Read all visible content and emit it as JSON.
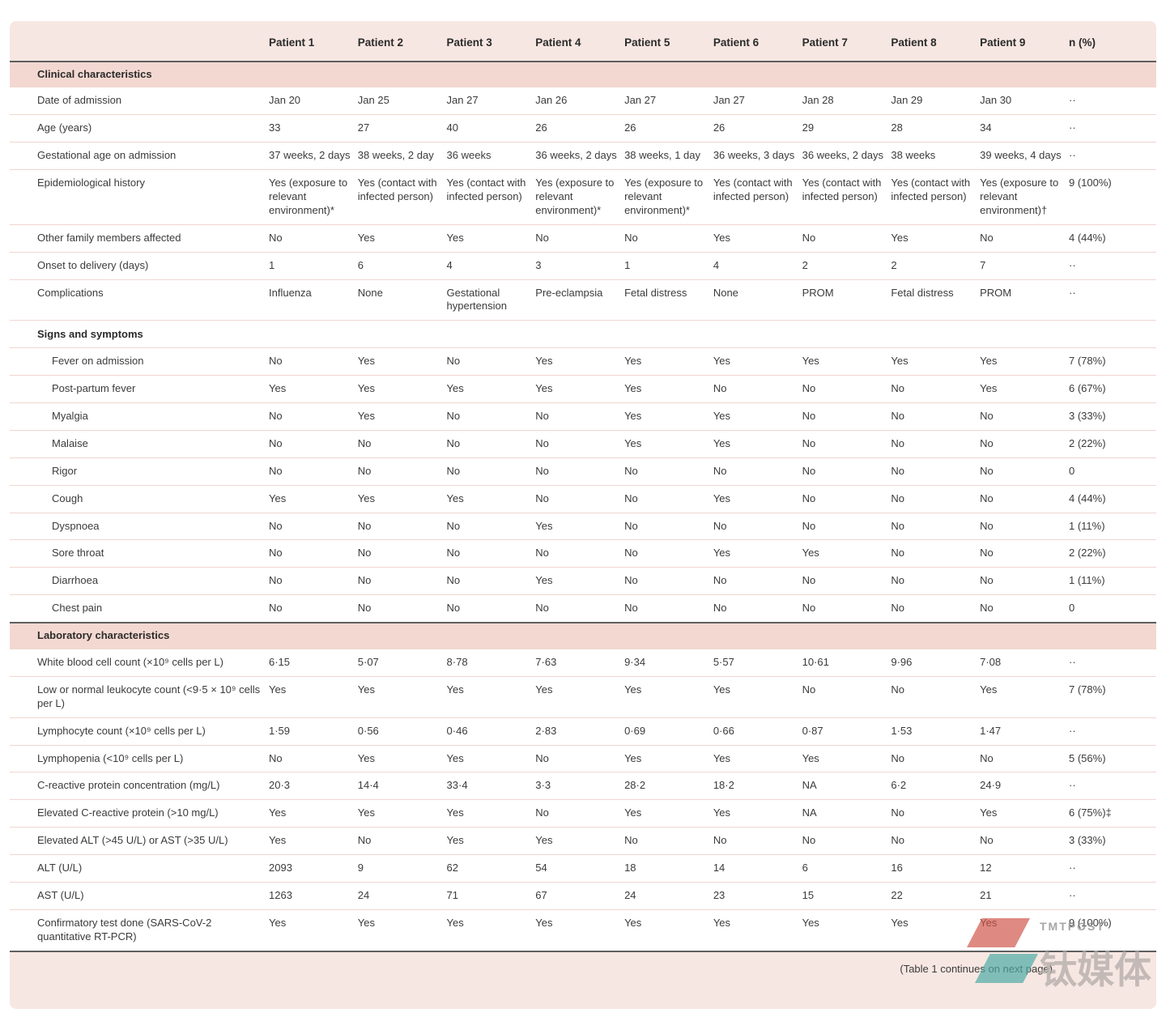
{
  "table": {
    "columns": [
      "",
      "Patient 1",
      "Patient 2",
      "Patient 3",
      "Patient 4",
      "Patient 5",
      "Patient 6",
      "Patient 7",
      "Patient 8",
      "Patient 9",
      "n (%)"
    ],
    "footer_note": "(Table 1 continues on next page)",
    "sections": [
      {
        "type": "band",
        "label": "Clinical characteristics",
        "rows": [
          {
            "label": "Date of admission",
            "cells": [
              "Jan 20",
              "Jan 25",
              "Jan 27",
              "Jan 26",
              "Jan 27",
              "Jan 27",
              "Jan 28",
              "Jan 29",
              "Jan 30"
            ],
            "n": "··"
          },
          {
            "label": "Age (years)",
            "cells": [
              "33",
              "27",
              "40",
              "26",
              "26",
              "26",
              "29",
              "28",
              "34"
            ],
            "n": "··"
          },
          {
            "label": "Gestational age on admission",
            "cells": [
              "37 weeks, 2 days",
              "38 weeks, 2 day",
              "36 weeks",
              "36 weeks, 2 days",
              "38 weeks, 1 day",
              "36 weeks, 3 days",
              "36 weeks, 2 days",
              "38 weeks",
              "39 weeks, 4 days"
            ],
            "n": "··"
          },
          {
            "label": "Epidemiological history",
            "cells": [
              "Yes (exposure to relevant environment)*",
              "Yes (contact with infected person)",
              "Yes (contact with infected person)",
              "Yes (exposure to relevant environment)*",
              "Yes (exposure to relevant environment)*",
              "Yes (contact with infected person)",
              "Yes (contact with infected person)",
              "Yes (contact with infected person)",
              "Yes (exposure to relevant environment)†"
            ],
            "n": "9 (100%)"
          },
          {
            "label": "Other family members affected",
            "cells": [
              "No",
              "Yes",
              "Yes",
              "No",
              "No",
              "Yes",
              "No",
              "Yes",
              "No"
            ],
            "n": "4 (44%)"
          },
          {
            "label": "Onset to delivery (days)",
            "cells": [
              "1",
              "6",
              "4",
              "3",
              "1",
              "4",
              "2",
              "2",
              "7"
            ],
            "n": "··"
          },
          {
            "label": "Complications",
            "cells": [
              "Influenza",
              "None",
              "Gestational hypertension",
              "Pre-eclampsia",
              "Fetal distress",
              "None",
              "PROM",
              "Fetal distress",
              "PROM"
            ],
            "n": "··"
          }
        ]
      },
      {
        "type": "subheader",
        "label": "Signs and symptoms",
        "rows": [
          {
            "label": "Fever on admission",
            "indent": true,
            "cells": [
              "No",
              "Yes",
              "No",
              "Yes",
              "Yes",
              "Yes",
              "Yes",
              "Yes",
              "Yes"
            ],
            "n": "7 (78%)"
          },
          {
            "label": "Post-partum fever",
            "indent": true,
            "cells": [
              "Yes",
              "Yes",
              "Yes",
              "Yes",
              "Yes",
              "No",
              "No",
              "No",
              "Yes"
            ],
            "n": "6 (67%)"
          },
          {
            "label": "Myalgia",
            "indent": true,
            "cells": [
              "No",
              "Yes",
              "No",
              "No",
              "Yes",
              "Yes",
              "No",
              "No",
              "No"
            ],
            "n": "3 (33%)"
          },
          {
            "label": "Malaise",
            "indent": true,
            "cells": [
              "No",
              "No",
              "No",
              "No",
              "Yes",
              "Yes",
              "No",
              "No",
              "No"
            ],
            "n": "2 (22%)"
          },
          {
            "label": "Rigor",
            "indent": true,
            "cells": [
              "No",
              "No",
              "No",
              "No",
              "No",
              "No",
              "No",
              "No",
              "No"
            ],
            "n": "0"
          },
          {
            "label": "Cough",
            "indent": true,
            "cells": [
              "Yes",
              "Yes",
              "Yes",
              "No",
              "No",
              "Yes",
              "No",
              "No",
              "No"
            ],
            "n": "4 (44%)"
          },
          {
            "label": "Dyspnoea",
            "indent": true,
            "cells": [
              "No",
              "No",
              "No",
              "Yes",
              "No",
              "No",
              "No",
              "No",
              "No"
            ],
            "n": "1 (11%)"
          },
          {
            "label": "Sore throat",
            "indent": true,
            "cells": [
              "No",
              "No",
              "No",
              "No",
              "No",
              "Yes",
              "Yes",
              "No",
              "No"
            ],
            "n": "2 (22%)"
          },
          {
            "label": "Diarrhoea",
            "indent": true,
            "cells": [
              "No",
              "No",
              "No",
              "Yes",
              "No",
              "No",
              "No",
              "No",
              "No"
            ],
            "n": "1 (11%)"
          },
          {
            "label": "Chest pain",
            "indent": true,
            "cells": [
              "No",
              "No",
              "No",
              "No",
              "No",
              "No",
              "No",
              "No",
              "No"
            ],
            "n": "0"
          }
        ]
      },
      {
        "type": "band",
        "label": "Laboratory characteristics",
        "rows": [
          {
            "label": "White blood cell count (×10⁹ cells per L)",
            "cells": [
              "6·15",
              "5·07",
              "8·78",
              "7·63",
              "9·34",
              "5·57",
              "10·61",
              "9·96",
              "7·08"
            ],
            "n": "··"
          },
          {
            "label": "Low or normal leukocyte count (<9·5 × 10⁹ cells per L)",
            "cells": [
              "Yes",
              "Yes",
              "Yes",
              "Yes",
              "Yes",
              "Yes",
              "No",
              "No",
              "Yes"
            ],
            "n": "7 (78%)"
          },
          {
            "label": "Lymphocyte count (×10⁹ cells per L)",
            "cells": [
              "1·59",
              "0·56",
              "0·46",
              "2·83",
              "0·69",
              "0·66",
              "0·87",
              "1·53",
              "1·47"
            ],
            "n": "··"
          },
          {
            "label": "Lymphopenia (<10⁹ cells per L)",
            "cells": [
              "No",
              "Yes",
              "Yes",
              "No",
              "Yes",
              "Yes",
              "Yes",
              "No",
              "No"
            ],
            "n": "5 (56%)"
          },
          {
            "label": "C-reactive protein concentration (mg/L)",
            "cells": [
              "20·3",
              "14·4",
              "33·4",
              "3·3",
              "28·2",
              "18·2",
              "NA",
              "6·2",
              "24·9"
            ],
            "n": "··"
          },
          {
            "label": "Elevated C-reactive protein (>10 mg/L)",
            "cells": [
              "Yes",
              "Yes",
              "Yes",
              "No",
              "Yes",
              "Yes",
              "NA",
              "No",
              "Yes"
            ],
            "n": "6 (75%)‡"
          },
          {
            "label": "Elevated ALT (>45 U/L) or AST (>35 U/L)",
            "cells": [
              "Yes",
              "No",
              "Yes",
              "Yes",
              "No",
              "No",
              "No",
              "No",
              "No"
            ],
            "n": "3 (33%)"
          },
          {
            "label": "ALT (U/L)",
            "cells": [
              "2093",
              "9",
              "62",
              "54",
              "18",
              "14",
              "6",
              "16",
              "12"
            ],
            "n": "··"
          },
          {
            "label": "AST (U/L)",
            "cells": [
              "1263",
              "24",
              "71",
              "67",
              "24",
              "23",
              "15",
              "22",
              "21"
            ],
            "n": "··"
          },
          {
            "label": "Confirmatory test done (SARS-CoV-2 quantitative RT-PCR)",
            "cells": [
              "Yes",
              "Yes",
              "Yes",
              "Yes",
              "Yes",
              "Yes",
              "Yes",
              "Yes",
              "Yes"
            ],
            "n": "9 (100%)"
          }
        ]
      }
    ]
  },
  "watermark": {
    "brand_en": "TMTPOST",
    "brand_cn": "钛媒体"
  }
}
